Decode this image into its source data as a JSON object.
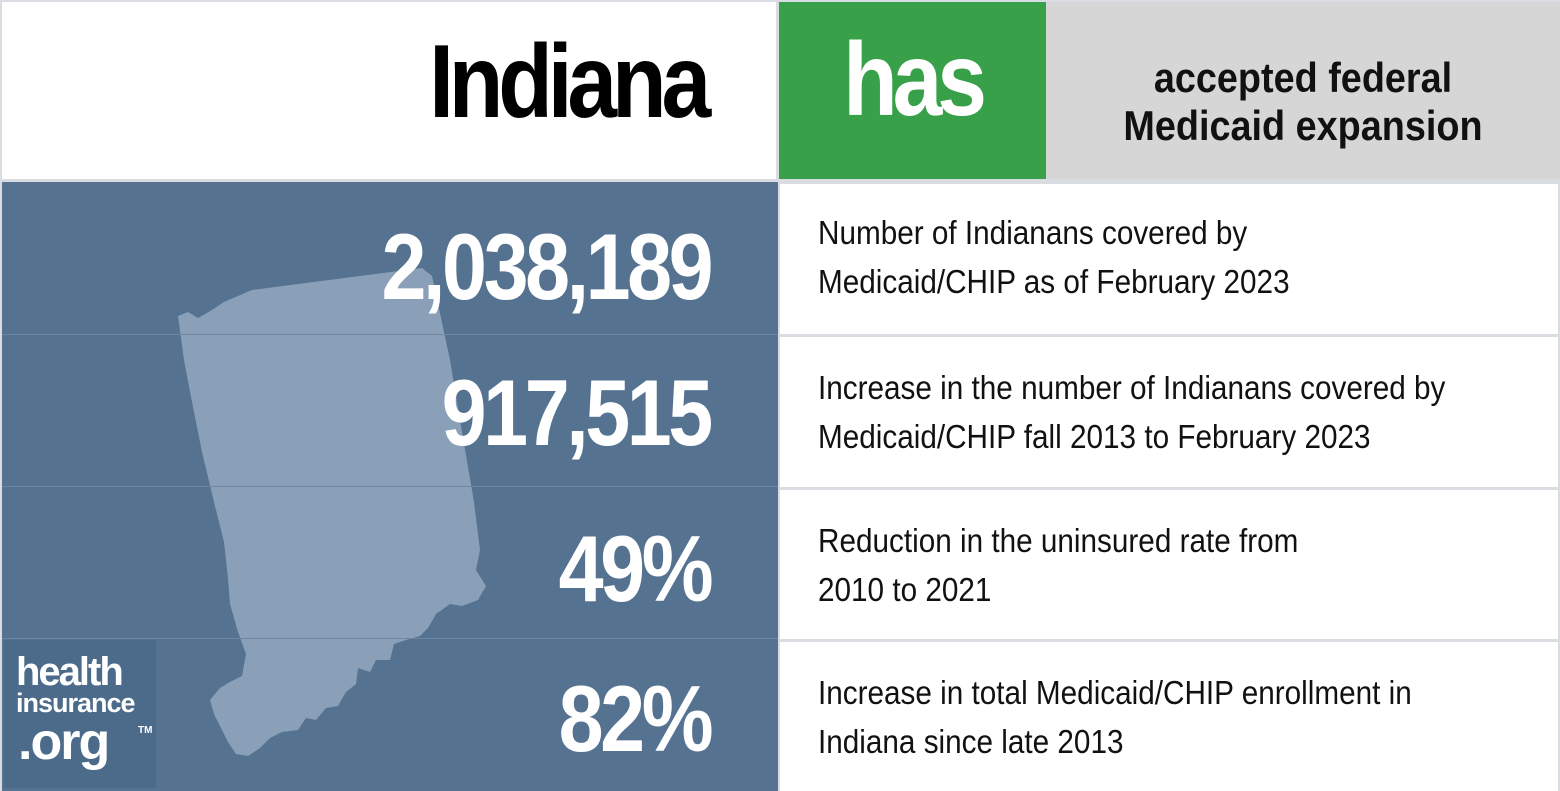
{
  "header": {
    "state_name": "Indiana",
    "status_word": "has",
    "status_line1": "accepted federal",
    "status_line2": "Medicaid expansion"
  },
  "stats": [
    {
      "value": "2,038,189",
      "desc_line1": "Number of Indianans covered by",
      "desc_line2": "Medicaid/CHIP as of February 2023"
    },
    {
      "value": "917,515",
      "desc_line1": "Increase in the number of Indianans covered by",
      "desc_line2": "Medicaid/CHIP fall 2013 to February 2023"
    },
    {
      "value": "49%",
      "desc_line1": "Reduction in the uninsured rate from",
      "desc_line2": "2010 to 2021"
    },
    {
      "value": "82%",
      "desc_line1": "Increase in total Medicaid/CHIP enrollment in",
      "desc_line2": "Indiana since late 2013"
    }
  ],
  "logo": {
    "line1": "health",
    "line2": "insurance",
    "line3": ".org",
    "trademark": "TM"
  },
  "colors": {
    "accent_green": "#38a049",
    "panel_blue": "#557291",
    "status_gray": "#d6d6d6"
  },
  "icons": {
    "state_outline": "indiana-state-silhouette"
  }
}
